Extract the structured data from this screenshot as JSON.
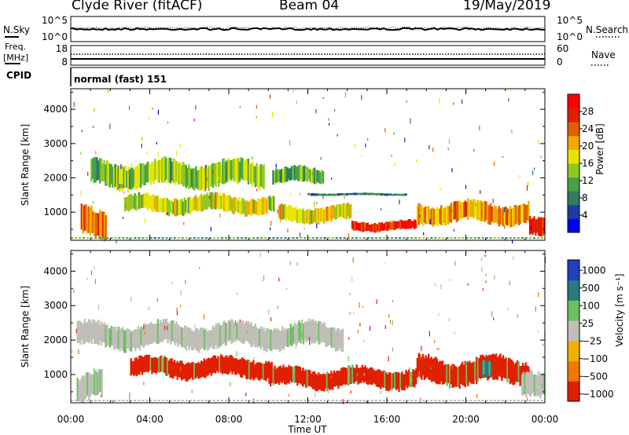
{
  "header": {
    "station": "Clyde River (fitACF)",
    "beam": "Beam 04",
    "date": "19/May/2019"
  },
  "noise_panel": {
    "left_label": "N.Sky",
    "right_label": "N.Search",
    "ticks_left": [
      "10^5",
      "10^0"
    ],
    "ticks_right": [
      "10^5",
      "10^0"
    ]
  },
  "freq_panel": {
    "left_label_1": "Freq.",
    "left_label_2": "[MHz]",
    "right_label": "Nave",
    "ticks_left": [
      "18",
      "8"
    ],
    "ticks_right": [
      "60",
      "0"
    ]
  },
  "cpid_panel": {
    "label": "CPID",
    "value": "normal (fast) 151"
  },
  "chart_data": [
    {
      "type": "heatmap",
      "name": "power",
      "ylabel": "Slant Range [km]",
      "yticks": [
        1000,
        2000,
        3000,
        4000
      ],
      "ylim": [
        180,
        4600
      ],
      "colorbar": {
        "label": "Power [dB]",
        "ticks": [
          "4",
          "8",
          "12",
          "16",
          "20",
          "24",
          "28"
        ],
        "range": [
          0,
          32
        ],
        "colors": [
          "#0000ff",
          "#1e3ca0",
          "#2f7a60",
          "#48a148",
          "#90c820",
          "#e8e400",
          "#f0a800",
          "#e06000",
          "#e02000",
          "#ff0000"
        ]
      },
      "bands": [
        {
          "from": 1.0,
          "to": 9.8,
          "r1": 1700,
          "r2": 2500,
          "value": 14
        },
        {
          "from": 10.2,
          "to": 12.8,
          "r1": 1800,
          "r2": 2300,
          "value": 12
        },
        {
          "from": 2.7,
          "to": 10.3,
          "r1": 950,
          "r2": 1500,
          "value": 17
        },
        {
          "from": 10.5,
          "to": 14.2,
          "r1": 700,
          "r2": 1200,
          "value": 18
        },
        {
          "from": 14.2,
          "to": 17.5,
          "r1": 450,
          "r2": 750,
          "value": 28
        },
        {
          "from": 17.5,
          "to": 23.2,
          "r1": 650,
          "r2": 1300,
          "value": 22
        },
        {
          "from": 23.2,
          "to": 24.0,
          "r1": 200,
          "r2": 800,
          "value": 28
        },
        {
          "from": 0.5,
          "to": 1.8,
          "r1": 200,
          "r2": 1100,
          "value": 24
        },
        {
          "from": 12.0,
          "to": 17.0,
          "r1": 1480,
          "r2": 1560,
          "value": 8
        }
      ]
    },
    {
      "type": "heatmap",
      "name": "velocity",
      "xlabel": "Time UT",
      "ylabel": "Slant Range [km]",
      "xticks": [
        "00:00",
        "04:00",
        "08:00",
        "12:00",
        "16:00",
        "20:00",
        "00:00"
      ],
      "xlim": [
        0,
        24
      ],
      "yticks": [
        1000,
        2000,
        3000,
        4000
      ],
      "ylim": [
        180,
        4600
      ],
      "colorbar": {
        "label": "Velocity [m s⁻¹]",
        "ticks": [
          "1000",
          "500",
          "100",
          "25",
          "−25",
          "−100",
          "−500",
          "−1000"
        ],
        "colors": [
          "#2040c0",
          "#2a7a80",
          "#6cc060",
          "#bfbfb8",
          "#f0b000",
          "#f07800",
          "#e02000"
        ]
      },
      "bands": [
        {
          "from": 0.3,
          "to": 13.8,
          "r1": 1750,
          "r2": 2500,
          "value": "25"
        },
        {
          "from": 3.0,
          "to": 10.2,
          "r1": 900,
          "r2": 1500,
          "value": "-500"
        },
        {
          "from": 10.0,
          "to": 17.5,
          "r1": 600,
          "r2": 1200,
          "value": "-500"
        },
        {
          "from": 17.5,
          "to": 23.2,
          "r1": 700,
          "r2": 1500,
          "value": "-500"
        },
        {
          "from": 20.8,
          "to": 21.3,
          "r1": 800,
          "r2": 1350,
          "value": "500"
        },
        {
          "from": 0.3,
          "to": 1.6,
          "r1": 200,
          "r2": 1100,
          "value": "25"
        },
        {
          "from": 22.8,
          "to": 24.0,
          "r1": 200,
          "r2": 1000,
          "value": "25"
        }
      ]
    }
  ]
}
